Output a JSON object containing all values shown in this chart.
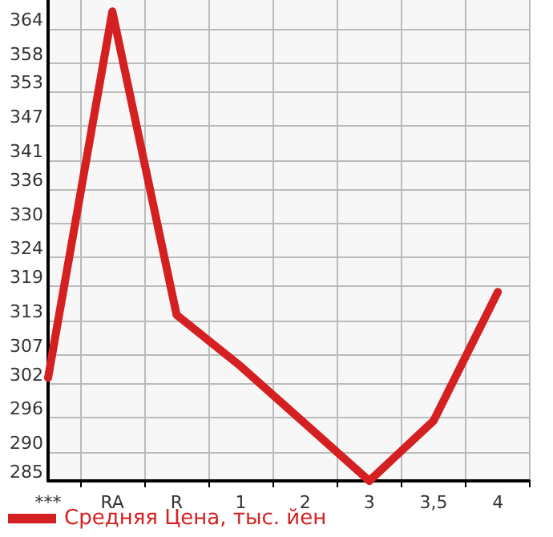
{
  "chart_data": {
    "type": "line",
    "categories": [
      "***",
      "RA",
      "R",
      "1",
      "2",
      "3",
      "3,5",
      "4"
    ],
    "series": [
      {
        "name": "Средняя Цена, тыс. йен",
        "color": "#d42020",
        "values": [
          303,
          367,
          314,
          305,
          295,
          285,
          295.5,
          318
        ]
      }
    ],
    "ylim": [
      285,
      369
    ],
    "yticks": [
      285,
      290,
      296,
      302,
      307,
      313,
      319,
      324,
      330,
      336,
      341,
      347,
      353,
      358,
      364
    ],
    "grid": true,
    "legend": "bottom left",
    "marker": "none",
    "line_style": "solid"
  }
}
